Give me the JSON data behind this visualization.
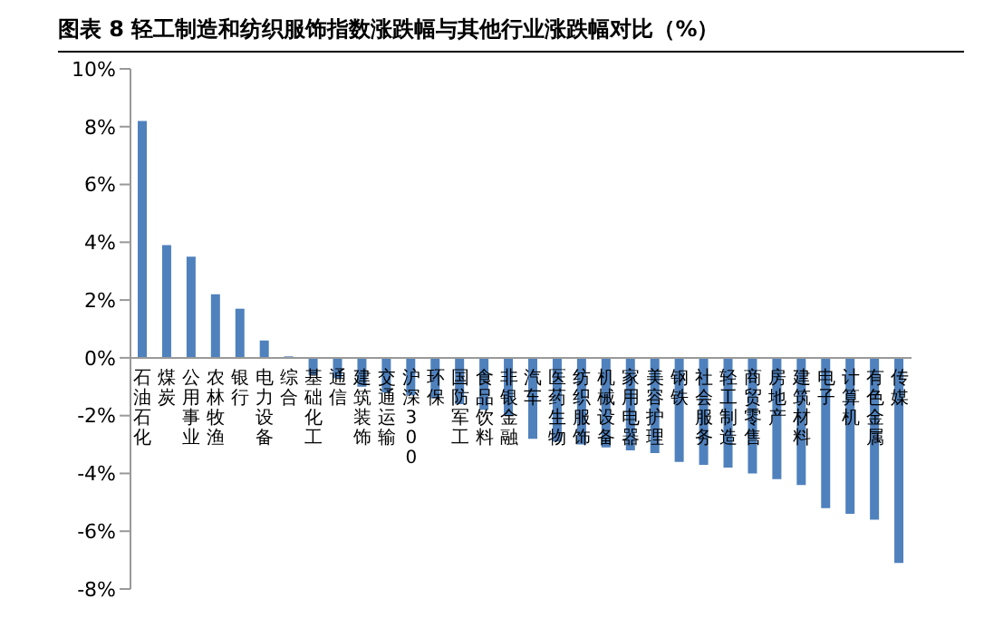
{
  "chart_data": {
    "type": "bar",
    "title": "图表 8 轻工制造和纺织服饰指数涨跌幅与其他行业涨跌幅对比（%）",
    "categories": [
      "石油石化",
      "煤炭",
      "公用事业",
      "农林牧渔",
      "银行",
      "电力设备",
      "综合",
      "基础化工",
      "通信",
      "建筑装饰",
      "交通运输",
      "沪深300",
      "环保",
      "国防军工",
      "食品饮料",
      "非银金融",
      "汽车",
      "医药生物",
      "纺织服饰",
      "机械设备",
      "家用电器",
      "美容护理",
      "钢铁",
      "社会服务",
      "轻工制造",
      "商贸零售",
      "房地产",
      "建筑材料",
      "电子",
      "计算机",
      "有色金属",
      "传媒"
    ],
    "values": [
      8.2,
      3.9,
      3.5,
      2.2,
      1.7,
      0.6,
      0.05,
      -0.6,
      -0.7,
      -1.0,
      -1.2,
      -1.3,
      -1.4,
      -1.6,
      -1.8,
      -2.0,
      -2.8,
      -2.9,
      -3.0,
      -3.1,
      -3.2,
      -3.3,
      -3.6,
      -3.7,
      -3.8,
      -4.0,
      -4.2,
      -4.4,
      -5.2,
      -5.4,
      -5.6,
      -7.1
    ],
    "color": "#4f81bd",
    "ylim": [
      -8,
      10
    ],
    "yticks": [
      {
        "value": -8,
        "label": "-8%"
      },
      {
        "value": -6,
        "label": "-6%"
      },
      {
        "value": -4,
        "label": "-4%"
      },
      {
        "value": -2,
        "label": "-2%"
      },
      {
        "value": 0,
        "label": "0%"
      },
      {
        "value": 2,
        "label": "2%"
      },
      {
        "value": 4,
        "label": "4%"
      },
      {
        "value": 6,
        "label": "6%"
      },
      {
        "value": 8,
        "label": "8%"
      },
      {
        "value": 10,
        "label": "10%"
      }
    ],
    "grid": false,
    "legend": false
  }
}
